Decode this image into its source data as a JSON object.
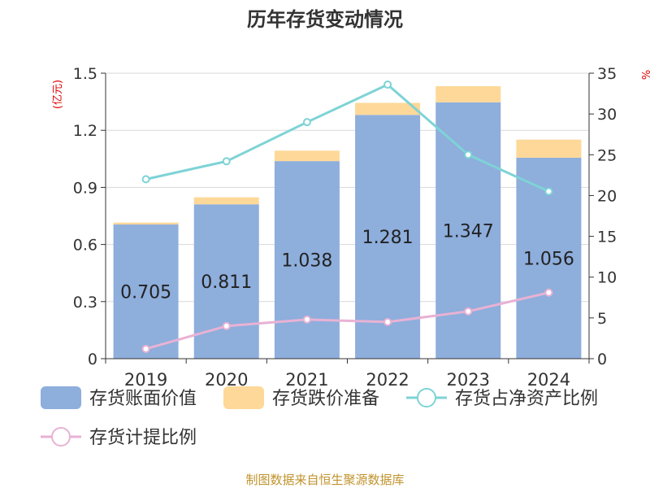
{
  "chart_data": {
    "type": "bar",
    "title": "历年存货变动情况",
    "categories": [
      "2019",
      "2020",
      "2021",
      "2022",
      "2023",
      "2024"
    ],
    "left_axis": {
      "unit": "(亿元)",
      "ylim": [
        0,
        1.5
      ],
      "ticks": [
        "0",
        "0.3",
        "0.6",
        "0.9",
        "1.2",
        "1.5"
      ]
    },
    "right_axis": {
      "unit": "%",
      "ylim": [
        0,
        35
      ],
      "ticks": [
        "0",
        "5",
        "10",
        "15",
        "20",
        "25",
        "30",
        "35"
      ]
    },
    "series": [
      {
        "name": "存货账面价值",
        "kind": "bar",
        "axis": "left",
        "color": "#8eaedc",
        "values": [
          0.705,
          0.811,
          1.038,
          1.281,
          1.347,
          1.056
        ],
        "labels": [
          "0.705",
          "0.811",
          "1.038",
          "1.281",
          "1.347",
          "1.056"
        ]
      },
      {
        "name": "存货跌价准备",
        "kind": "bar-stack",
        "axis": "left",
        "color": "#fdd898",
        "values": [
          0.01,
          0.037,
          0.055,
          0.063,
          0.085,
          0.095
        ]
      },
      {
        "name": "存货占净资产比例",
        "kind": "line",
        "axis": "right",
        "color": "#7ed3d6",
        "values": [
          22.0,
          24.2,
          29.0,
          33.6,
          25.0,
          20.5
        ]
      },
      {
        "name": "存货计提比例",
        "kind": "line",
        "axis": "right",
        "color": "#e8b2d4",
        "values": [
          1.2,
          4.0,
          4.8,
          4.5,
          5.8,
          8.1
        ]
      }
    ],
    "grid": true,
    "legend": "bottom"
  },
  "footer": {
    "source": "制图数据来自恒生聚源数据库"
  }
}
